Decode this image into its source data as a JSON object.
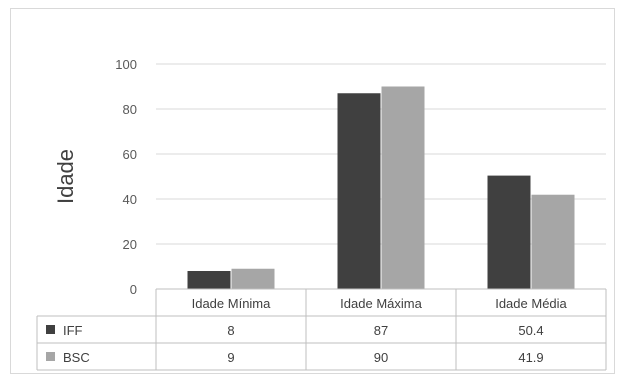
{
  "chart_data": {
    "type": "bar",
    "title": "",
    "xlabel": "",
    "ylabel": "Idade",
    "ylim": [
      0,
      100
    ],
    "yticks": [
      0,
      20,
      40,
      60,
      80,
      100
    ],
    "grid": true,
    "legend": "data-table",
    "categories": [
      "Idade Mínima",
      "Idade Máxima",
      "Idade Média"
    ],
    "series": [
      {
        "name": "IFF",
        "values": [
          8,
          87,
          50.4
        ],
        "labels": [
          "8",
          "87",
          "50.4"
        ],
        "color": "#404040"
      },
      {
        "name": "BSC",
        "values": [
          9,
          90,
          41.9
        ],
        "labels": [
          "9",
          "90",
          "41.9"
        ],
        "color": "#a6a6a6"
      }
    ]
  }
}
